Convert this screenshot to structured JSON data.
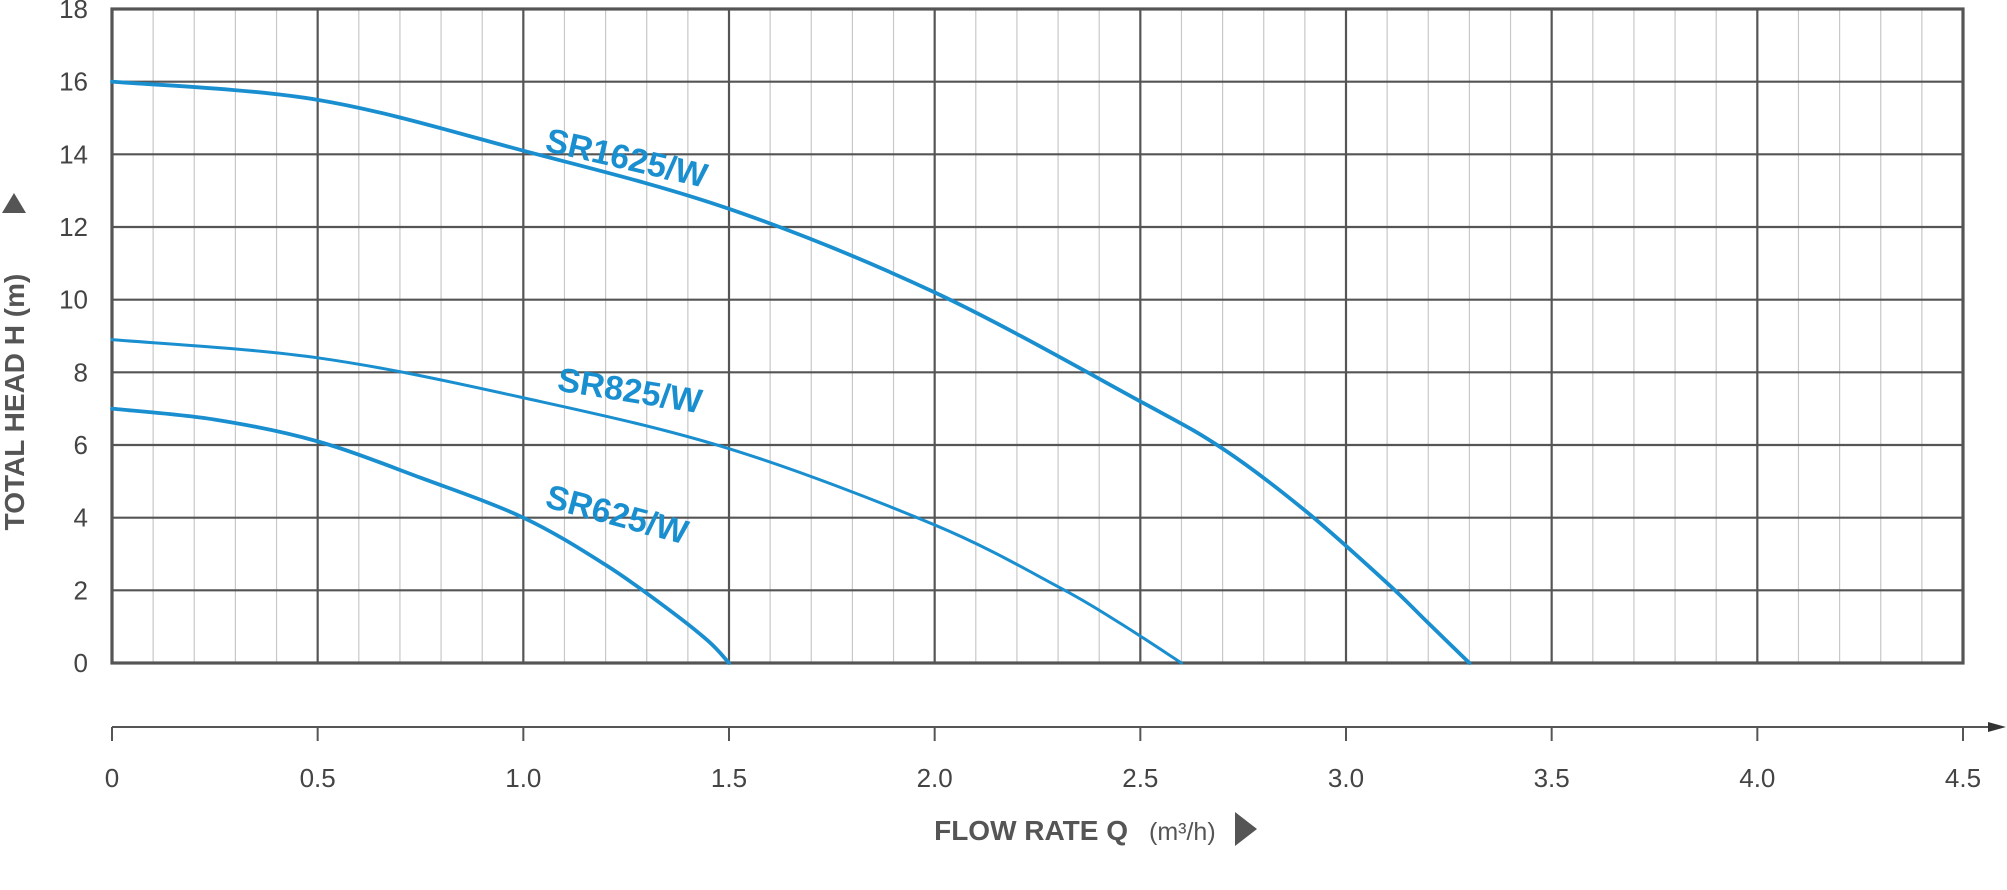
{
  "chart_data": {
    "type": "line",
    "xlabel": "FLOW RATE Q",
    "xunit": "m³/h",
    "ylabel": "TOTAL HEAD H (m)",
    "xlim": [
      0,
      4.5
    ],
    "ylim": [
      0,
      18
    ],
    "x_ticks": [
      0,
      0.5,
      1.0,
      1.5,
      2.0,
      2.5,
      3.0,
      3.5,
      4.0,
      4.5
    ],
    "x_tick_labels": [
      "0",
      "0.5",
      "1.0",
      "1.5",
      "2.0",
      "2.5",
      "3.0",
      "3.5",
      "4.0",
      "4.5"
    ],
    "y_ticks": [
      0,
      2,
      4,
      6,
      8,
      10,
      12,
      14,
      16,
      18
    ],
    "y_tick_labels": [
      "0",
      "2",
      "4",
      "6",
      "8",
      "10",
      "12",
      "14",
      "16",
      "18"
    ],
    "grid": true,
    "line_color": "#1a8fd0",
    "series": [
      {
        "name": "SR1625/W",
        "label_at": [
          1.05,
          14.1
        ],
        "label_angle": 13,
        "x": [
          0,
          0.5,
          1.0,
          1.5,
          2.0,
          2.5,
          2.7,
          2.9,
          3.1,
          3.2,
          3.3
        ],
        "y": [
          16.0,
          15.5,
          14.1,
          12.5,
          10.2,
          7.2,
          5.9,
          4.2,
          2.2,
          1.1,
          0
        ]
      },
      {
        "name": "SR825/W",
        "label_at": [
          1.08,
          7.5
        ],
        "label_angle": 9,
        "x": [
          0,
          0.5,
          1.0,
          1.5,
          2.0,
          2.3,
          2.45,
          2.6
        ],
        "y": [
          8.9,
          8.4,
          7.3,
          5.9,
          3.8,
          2.1,
          1.1,
          0
        ]
      },
      {
        "name": "SR625/W",
        "label_at": [
          1.05,
          4.3
        ],
        "label_angle": 15,
        "x": [
          0,
          0.25,
          0.5,
          0.75,
          1.0,
          1.2,
          1.35,
          1.45,
          1.5
        ],
        "y": [
          7.0,
          6.7,
          6.1,
          5.1,
          4.0,
          2.7,
          1.5,
          0.6,
          0
        ]
      }
    ]
  }
}
